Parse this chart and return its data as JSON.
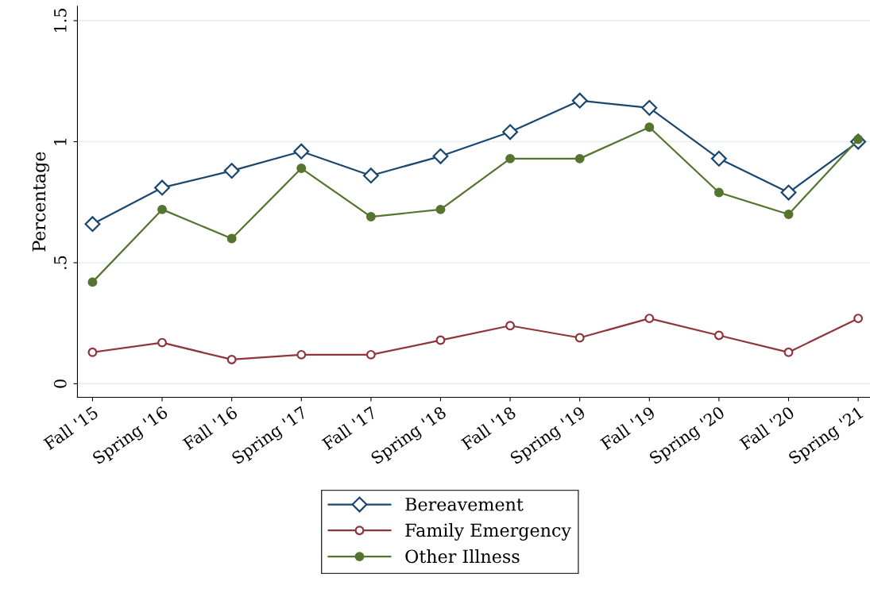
{
  "chart_data": {
    "type": "line",
    "ylabel": "Percentage",
    "categories": [
      "Fall '15",
      "Spring '16",
      "Fall '16",
      "Spring '17",
      "Fall '17",
      "Spring '18",
      "Fall '18",
      "Spring '19",
      "Fall '19",
      "Spring '20",
      "Fall '20",
      "Spring '21"
    ],
    "series": [
      {
        "name": "Bereavement",
        "color": "#1a476f",
        "marker": "diamond",
        "values": [
          0.66,
          0.81,
          0.88,
          0.96,
          0.86,
          0.94,
          1.04,
          1.17,
          1.14,
          0.93,
          0.79,
          1.0
        ]
      },
      {
        "name": "Family Emergency",
        "color": "#90353b",
        "marker": "circle",
        "values": [
          0.13,
          0.17,
          0.1,
          0.12,
          0.12,
          0.18,
          0.24,
          0.19,
          0.27,
          0.2,
          0.13,
          0.27
        ]
      },
      {
        "name": "Other Illness",
        "color": "#55752f",
        "marker": "circle",
        "values": [
          0.42,
          0.72,
          0.6,
          0.89,
          0.69,
          0.72,
          0.93,
          0.93,
          1.06,
          0.79,
          0.7,
          1.01
        ]
      }
    ],
    "ylim": [
      -0.056,
      1.56
    ],
    "yticks": [
      0,
      {
        "value": 0.5,
        "label": ".5"
      },
      1,
      1.5
    ],
    "grid": "y",
    "legend": "bottom",
    "line_style": "solid"
  }
}
